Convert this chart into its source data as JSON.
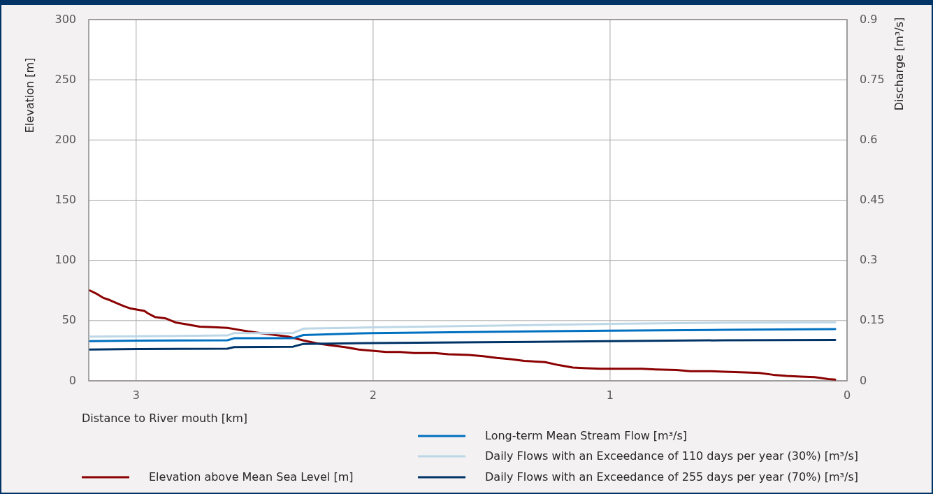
{
  "chart_data": {
    "type": "line",
    "xlabel": "Distance to River mouth  [km]",
    "ylabel": "Elevation  [m]",
    "y2label": "Discharge  [m³/s]",
    "xlim": [
      3.2,
      0
    ],
    "xticks": [
      3,
      2,
      1,
      0
    ],
    "ylim": [
      0,
      300
    ],
    "yticks": [
      0,
      50,
      100,
      150,
      200,
      250,
      300
    ],
    "y2lim": [
      0,
      0.9
    ],
    "y2ticks": [
      0,
      0.15,
      0.3,
      0.45,
      0.6,
      0.75,
      0.9
    ],
    "grid": true,
    "legend": "bottom",
    "line_style": "solid",
    "marker": "none",
    "series": [
      {
        "name": "Elevation above Mean Sea Level  [m]",
        "color": "#8b0000",
        "x": [
          3.195,
          3.169,
          3.14,
          3.111,
          3.082,
          3.052,
          3.023,
          2.994,
          2.965,
          2.95,
          2.921,
          2.878,
          2.834,
          2.79,
          2.732,
          2.673,
          2.615,
          2.586,
          2.528,
          2.469,
          2.411,
          2.353,
          2.294,
          2.236,
          2.178,
          2.12,
          2.061,
          2.003,
          1.945,
          1.886,
          1.828,
          1.741,
          1.682,
          1.595,
          1.536,
          1.478,
          1.42,
          1.362,
          1.274,
          1.216,
          1.157,
          1.099,
          1.041,
          0.953,
          0.866,
          0.808,
          0.72,
          0.662,
          0.574,
          0.516,
          0.429,
          0.37,
          0.312,
          0.254,
          0.195,
          0.137,
          0.079,
          0.05
        ],
        "values": [
          75,
          72.5,
          69,
          67,
          64.5,
          62,
          60,
          59,
          58,
          56,
          53,
          52,
          48.5,
          47,
          45,
          44.5,
          44,
          43,
          41,
          39.5,
          38,
          36.5,
          33.5,
          31,
          29.5,
          28,
          26,
          25,
          24,
          24,
          23,
          23,
          22,
          21.5,
          20.5,
          19,
          18,
          16.5,
          15.5,
          13,
          11,
          10.5,
          10,
          10,
          10,
          9.5,
          9,
          8,
          8,
          7.5,
          7,
          6.5,
          5,
          4,
          3.5,
          3,
          1.5,
          1
        ]
      },
      {
        "name": "Long-term Mean Stream Flow  [m³/s]",
        "color": "#0070c0",
        "axis": "y2",
        "x": [
          3.195,
          2.994,
          2.615,
          2.586,
          2.338,
          2.294,
          2.003,
          1.536,
          1.0,
          0.516,
          0.05
        ],
        "values": [
          0.099,
          0.1,
          0.101,
          0.106,
          0.106,
          0.114,
          0.119,
          0.122,
          0.125,
          0.127,
          0.129
        ]
      },
      {
        "name": "Daily Flows with an Exceedance of 110 days per year (30%)  [m³/s]",
        "color": "#bdd7e7",
        "axis": "y2",
        "x": [
          3.195,
          2.994,
          2.615,
          2.586,
          2.338,
          2.294,
          2.003,
          1.536,
          1.0,
          0.516,
          0.05
        ],
        "values": [
          0.11,
          0.111,
          0.113,
          0.119,
          0.119,
          0.13,
          0.133,
          0.137,
          0.142,
          0.145,
          0.146
        ]
      },
      {
        "name": "Daily Flows with an Exceedance of 255 days per year (70%)  [m³/s]",
        "color": "#003366",
        "axis": "y2",
        "x": [
          3.195,
          2.994,
          2.615,
          2.586,
          2.338,
          2.294,
          2.003,
          1.536,
          1.0,
          0.516,
          0.05
        ],
        "values": [
          0.078,
          0.079,
          0.08,
          0.084,
          0.085,
          0.092,
          0.094,
          0.096,
          0.099,
          0.101,
          0.102
        ]
      }
    ]
  }
}
